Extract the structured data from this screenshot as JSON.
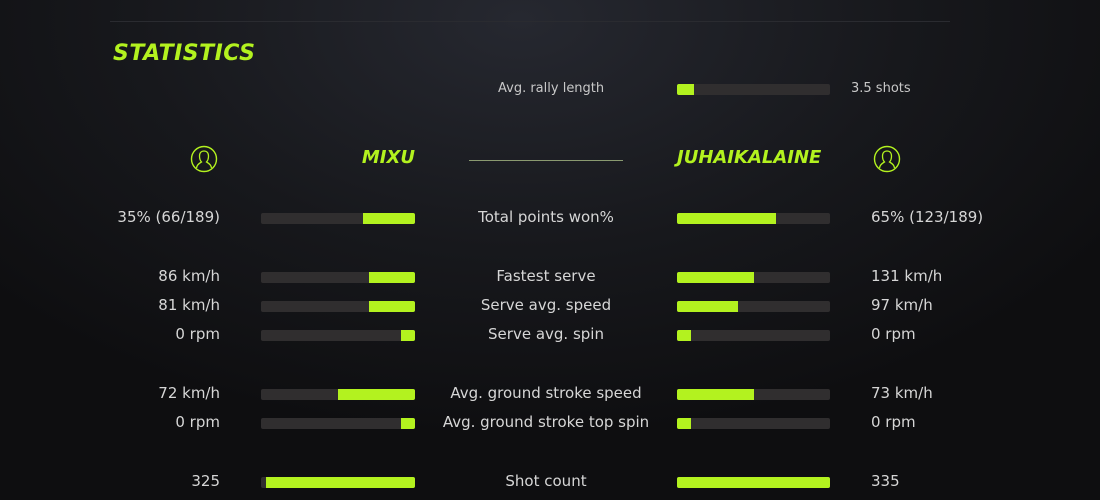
{
  "title": "STATISTICS",
  "accent_color": "#b3f21f",
  "rally": {
    "label": "Avg. rally length",
    "value": "3.5 shots",
    "fraction": 0.11
  },
  "players": {
    "left": {
      "name": "MIXU",
      "icon": "user-circle-icon"
    },
    "right": {
      "name": "JUHAIKALAINE",
      "icon": "user-circle-icon"
    }
  },
  "stats": [
    {
      "label": "Total points won%",
      "left": "35% (66/189)",
      "right": "65% (123/189)",
      "left_fraction": 0.34,
      "right_fraction": 0.65
    },
    {
      "label": "Fastest serve",
      "left": "86 km/h",
      "right": "131 km/h",
      "left_fraction": 0.3,
      "right_fraction": 0.5
    },
    {
      "label": "Serve avg. speed",
      "left": "81 km/h",
      "right": "97 km/h",
      "left_fraction": 0.3,
      "right_fraction": 0.4
    },
    {
      "label": "Serve avg. spin",
      "left": "0 rpm",
      "right": "0 rpm",
      "left_fraction": 0.09,
      "right_fraction": 0.09
    },
    {
      "label": "Avg. ground stroke speed",
      "left": "72 km/h",
      "right": "73 km/h",
      "left_fraction": 0.5,
      "right_fraction": 0.5
    },
    {
      "label": "Avg. ground stroke top spin",
      "left": "0 rpm",
      "right": "0 rpm",
      "left_fraction": 0.09,
      "right_fraction": 0.09
    },
    {
      "label": "Shot count",
      "left": "325",
      "right": "335",
      "left_fraction": 0.97,
      "right_fraction": 1.0
    }
  ]
}
